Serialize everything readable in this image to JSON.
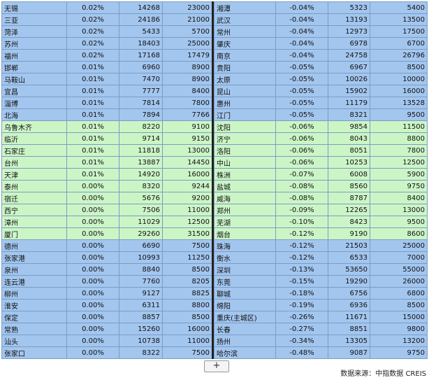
{
  "table": {
    "left": [
      [
        "无锡",
        "0.02%",
        "14268",
        "23000"
      ],
      [
        "三亚",
        "0.02%",
        "24186",
        "21000"
      ],
      [
        "菏泽",
        "0.02%",
        "5433",
        "5700"
      ],
      [
        "苏州",
        "0.02%",
        "18403",
        "25000"
      ],
      [
        "福州",
        "0.02%",
        "17168",
        "17479"
      ],
      [
        "邯郸",
        "0.01%",
        "6960",
        "8900"
      ],
      [
        "马鞍山",
        "0.01%",
        "7470",
        "8900"
      ],
      [
        "宜昌",
        "0.01%",
        "7777",
        "8400"
      ],
      [
        "淄博",
        "0.01%",
        "7814",
        "7800"
      ],
      [
        "北海",
        "0.01%",
        "7894",
        "7766"
      ],
      [
        "乌鲁木齐",
        "0.01%",
        "8220",
        "9100"
      ],
      [
        "临沂",
        "0.01%",
        "9714",
        "9150"
      ],
      [
        "石家庄",
        "0.01%",
        "11818",
        "13000"
      ],
      [
        "台州",
        "0.01%",
        "13887",
        "14450"
      ],
      [
        "天津",
        "0.01%",
        "14920",
        "16000"
      ],
      [
        "泰州",
        "0.00%",
        "8320",
        "9244"
      ],
      [
        "宿迁",
        "0.00%",
        "5676",
        "9200"
      ],
      [
        "西宁",
        "0.00%",
        "7506",
        "11000"
      ],
      [
        "漳州",
        "0.00%",
        "11029",
        "12500"
      ],
      [
        "厦门",
        "0.00%",
        "29260",
        "31500"
      ],
      [
        "德州",
        "0.00%",
        "6690",
        "7500"
      ],
      [
        "张家港",
        "0.00%",
        "10993",
        "11250"
      ],
      [
        "泉州",
        "0.00%",
        "8840",
        "8500"
      ],
      [
        "连云港",
        "0.00%",
        "7760",
        "8205"
      ],
      [
        "柳州",
        "0.00%",
        "9127",
        "8825"
      ],
      [
        "淮安",
        "0.00%",
        "6311",
        "8800"
      ],
      [
        "保定",
        "0.00%",
        "8857",
        "8500"
      ],
      [
        "常熟",
        "0.00%",
        "15260",
        "16000"
      ],
      [
        "汕头",
        "0.00%",
        "10738",
        "11000"
      ],
      [
        "张家口",
        "0.00%",
        "8322",
        "7500"
      ]
    ],
    "right": [
      [
        "湘潭",
        "-0.04%",
        "5323",
        "5400"
      ],
      [
        "武汉",
        "-0.04%",
        "13193",
        "13500"
      ],
      [
        "常州",
        "-0.04%",
        "12973",
        "17500"
      ],
      [
        "肇庆",
        "-0.04%",
        "6978",
        "6700"
      ],
      [
        "南京",
        "-0.04%",
        "24758",
        "26796"
      ],
      [
        "贵阳",
        "-0.05%",
        "6967",
        "8500"
      ],
      [
        "太原",
        "-0.05%",
        "10026",
        "10000"
      ],
      [
        "昆山",
        "-0.05%",
        "15902",
        "16000"
      ],
      [
        "惠州",
        "-0.05%",
        "11179",
        "13528"
      ],
      [
        "江门",
        "-0.05%",
        "8321",
        "9500"
      ],
      [
        "沈阳",
        "-0.06%",
        "9854",
        "11500"
      ],
      [
        "济宁",
        "-0.06%",
        "8043",
        "8800"
      ],
      [
        "洛阳",
        "-0.06%",
        "8051",
        "7800"
      ],
      [
        "中山",
        "-0.06%",
        "10253",
        "12500"
      ],
      [
        "株洲",
        "-0.07%",
        "6008",
        "5900"
      ],
      [
        "盐城",
        "-0.08%",
        "8560",
        "9750"
      ],
      [
        "威海",
        "-0.08%",
        "8787",
        "8400"
      ],
      [
        "郑州",
        "-0.09%",
        "12265",
        "13000"
      ],
      [
        "芜湖",
        "-0.10%",
        "8423",
        "9500"
      ],
      [
        "烟台",
        "-0.12%",
        "9190",
        "8600"
      ],
      [
        "珠海",
        "-0.12%",
        "21503",
        "25000"
      ],
      [
        "衡水",
        "-0.12%",
        "6533",
        "7000"
      ],
      [
        "深圳",
        "-0.13%",
        "53650",
        "55000"
      ],
      [
        "东莞",
        "-0.15%",
        "19290",
        "26000"
      ],
      [
        "聊城",
        "-0.18%",
        "6756",
        "6800"
      ],
      [
        "绵阳",
        "-0.19%",
        "6936",
        "8500"
      ],
      [
        "重庆(主城区)",
        "-0.26%",
        "11671",
        "15000"
      ],
      [
        "长春",
        "-0.27%",
        "8851",
        "9800"
      ],
      [
        "扬州",
        "-0.34%",
        "13305",
        "13200"
      ],
      [
        "哈尔滨",
        "-0.48%",
        "9087",
        "9750"
      ]
    ]
  },
  "footer": "数据来源：中指数据 CREIS"
}
